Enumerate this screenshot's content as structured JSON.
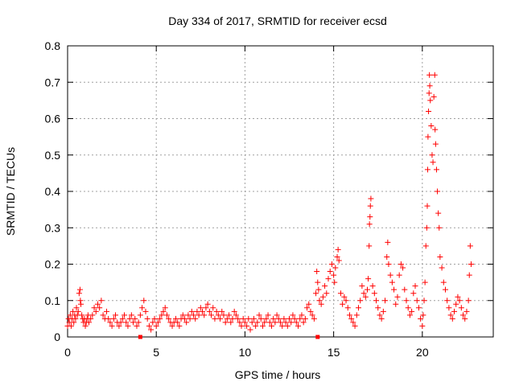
{
  "chart_data": {
    "type": "scatter",
    "title": "Day 334 of 2017, SRMTID for receiver ecsd",
    "xlabel": "GPS time / hours",
    "ylabel": "SRMTID / TECUs",
    "xlim": [
      0,
      24
    ],
    "ylim": [
      0,
      0.8
    ],
    "xticks": [
      0,
      5,
      10,
      15,
      20
    ],
    "xtick_labels": [
      "0",
      "5",
      "10",
      "15",
      "20"
    ],
    "yticks": [
      0,
      0.1,
      0.2,
      0.3,
      0.4,
      0.5,
      0.6,
      0.7,
      0.8
    ],
    "ytick_labels": [
      "0",
      "0.1",
      "0.2",
      "0.3",
      "0.4",
      "0.5",
      "0.6",
      "0.7",
      "0.8"
    ],
    "grid": true,
    "marker": "plus",
    "color": "#ff0000",
    "series": [
      {
        "name": "SRMTID",
        "points": [
          [
            0.0,
            0.03
          ],
          [
            0.05,
            0.05
          ],
          [
            0.1,
            0.04
          ],
          [
            0.15,
            0.06
          ],
          [
            0.2,
            0.03
          ],
          [
            0.25,
            0.05
          ],
          [
            0.3,
            0.07
          ],
          [
            0.35,
            0.04
          ],
          [
            0.4,
            0.06
          ],
          [
            0.45,
            0.05
          ],
          [
            0.5,
            0.08
          ],
          [
            0.55,
            0.06
          ],
          [
            0.6,
            0.07
          ],
          [
            0.65,
            0.12
          ],
          [
            0.7,
            0.13
          ],
          [
            0.72,
            0.1
          ],
          [
            0.75,
            0.09
          ],
          [
            0.8,
            0.06
          ],
          [
            0.85,
            0.05
          ],
          [
            0.9,
            0.04
          ],
          [
            0.95,
            0.05
          ],
          [
            1.0,
            0.03
          ],
          [
            1.05,
            0.04
          ],
          [
            1.1,
            0.05
          ],
          [
            1.15,
            0.06
          ],
          [
            1.2,
            0.04
          ],
          [
            1.3,
            0.05
          ],
          [
            1.4,
            0.06
          ],
          [
            1.5,
            0.08
          ],
          [
            1.6,
            0.07
          ],
          [
            1.7,
            0.09
          ],
          [
            1.8,
            0.08
          ],
          [
            1.9,
            0.1
          ],
          [
            2.0,
            0.06
          ],
          [
            2.1,
            0.05
          ],
          [
            2.2,
            0.07
          ],
          [
            2.3,
            0.05
          ],
          [
            2.4,
            0.04
          ],
          [
            2.5,
            0.03
          ],
          [
            2.6,
            0.05
          ],
          [
            2.7,
            0.06
          ],
          [
            2.8,
            0.04
          ],
          [
            2.9,
            0.03
          ],
          [
            3.0,
            0.04
          ],
          [
            3.1,
            0.05
          ],
          [
            3.2,
            0.06
          ],
          [
            3.3,
            0.04
          ],
          [
            3.4,
            0.03
          ],
          [
            3.5,
            0.05
          ],
          [
            3.6,
            0.06
          ],
          [
            3.7,
            0.04
          ],
          [
            3.8,
            0.05
          ],
          [
            3.9,
            0.03
          ],
          [
            4.0,
            0.04
          ],
          [
            4.1,
            0.06
          ],
          [
            4.2,
            0.08
          ],
          [
            4.3,
            0.1
          ],
          [
            4.4,
            0.07
          ],
          [
            4.5,
            0.05
          ],
          [
            4.6,
            0.03
          ],
          [
            4.7,
            0.02
          ],
          [
            4.8,
            0.04
          ],
          [
            4.9,
            0.05
          ],
          [
            5.0,
            0.03
          ],
          [
            5.1,
            0.04
          ],
          [
            5.2,
            0.05
          ],
          [
            5.3,
            0.06
          ],
          [
            5.4,
            0.07
          ],
          [
            5.5,
            0.08
          ],
          [
            5.6,
            0.06
          ],
          [
            5.7,
            0.05
          ],
          [
            5.8,
            0.04
          ],
          [
            5.9,
            0.03
          ],
          [
            6.0,
            0.04
          ],
          [
            6.1,
            0.05
          ],
          [
            6.2,
            0.04
          ],
          [
            6.3,
            0.03
          ],
          [
            6.4,
            0.05
          ],
          [
            6.5,
            0.06
          ],
          [
            6.6,
            0.05
          ],
          [
            6.7,
            0.04
          ],
          [
            6.8,
            0.06
          ],
          [
            6.9,
            0.05
          ],
          [
            7.0,
            0.07
          ],
          [
            7.1,
            0.06
          ],
          [
            7.2,
            0.05
          ],
          [
            7.3,
            0.07
          ],
          [
            7.4,
            0.06
          ],
          [
            7.5,
            0.08
          ],
          [
            7.6,
            0.07
          ],
          [
            7.7,
            0.06
          ],
          [
            7.8,
            0.08
          ],
          [
            7.9,
            0.09
          ],
          [
            8.0,
            0.07
          ],
          [
            8.1,
            0.06
          ],
          [
            8.2,
            0.08
          ],
          [
            8.3,
            0.05
          ],
          [
            8.4,
            0.07
          ],
          [
            8.5,
            0.06
          ],
          [
            8.6,
            0.05
          ],
          [
            8.7,
            0.07
          ],
          [
            8.8,
            0.06
          ],
          [
            8.9,
            0.04
          ],
          [
            9.0,
            0.05
          ],
          [
            9.1,
            0.06
          ],
          [
            9.2,
            0.04
          ],
          [
            9.3,
            0.05
          ],
          [
            9.4,
            0.07
          ],
          [
            9.5,
            0.06
          ],
          [
            9.6,
            0.05
          ],
          [
            9.7,
            0.04
          ],
          [
            9.8,
            0.03
          ],
          [
            9.9,
            0.05
          ],
          [
            10.0,
            0.04
          ],
          [
            10.1,
            0.03
          ],
          [
            10.2,
            0.05
          ],
          [
            10.3,
            0.02
          ],
          [
            10.4,
            0.04
          ],
          [
            10.5,
            0.05
          ],
          [
            10.6,
            0.03
          ],
          [
            10.7,
            0.04
          ],
          [
            10.8,
            0.06
          ],
          [
            10.9,
            0.05
          ],
          [
            11.0,
            0.03
          ],
          [
            11.1,
            0.04
          ],
          [
            11.2,
            0.05
          ],
          [
            11.3,
            0.06
          ],
          [
            11.4,
            0.04
          ],
          [
            11.5,
            0.03
          ],
          [
            11.6,
            0.05
          ],
          [
            11.7,
            0.04
          ],
          [
            11.8,
            0.06
          ],
          [
            11.9,
            0.05
          ],
          [
            12.0,
            0.04
          ],
          [
            12.1,
            0.03
          ],
          [
            12.2,
            0.05
          ],
          [
            12.3,
            0.04
          ],
          [
            12.4,
            0.03
          ],
          [
            12.5,
            0.05
          ],
          [
            12.6,
            0.04
          ],
          [
            12.7,
            0.06
          ],
          [
            12.8,
            0.05
          ],
          [
            12.9,
            0.04
          ],
          [
            13.0,
            0.03
          ],
          [
            13.1,
            0.05
          ],
          [
            13.2,
            0.06
          ],
          [
            13.3,
            0.04
          ],
          [
            13.4,
            0.05
          ],
          [
            13.5,
            0.08
          ],
          [
            13.6,
            0.09
          ],
          [
            13.7,
            0.07
          ],
          [
            13.8,
            0.06
          ],
          [
            13.9,
            0.05
          ],
          [
            14.0,
            0.12
          ],
          [
            14.05,
            0.18
          ],
          [
            14.1,
            0.15
          ],
          [
            14.15,
            0.13
          ],
          [
            14.2,
            0.1
          ],
          [
            14.3,
            0.09
          ],
          [
            14.4,
            0.11
          ],
          [
            14.5,
            0.14
          ],
          [
            14.6,
            0.12
          ],
          [
            14.7,
            0.16
          ],
          [
            14.8,
            0.18
          ],
          [
            14.9,
            0.2
          ],
          [
            15.0,
            0.17
          ],
          [
            15.05,
            0.15
          ],
          [
            15.1,
            0.19
          ],
          [
            15.2,
            0.22
          ],
          [
            15.25,
            0.24
          ],
          [
            15.3,
            0.21
          ],
          [
            15.4,
            0.12
          ],
          [
            15.5,
            0.09
          ],
          [
            15.6,
            0.11
          ],
          [
            15.7,
            0.1
          ],
          [
            15.8,
            0.08
          ],
          [
            15.9,
            0.06
          ],
          [
            16.0,
            0.05
          ],
          [
            16.1,
            0.04
          ],
          [
            16.2,
            0.03
          ],
          [
            16.3,
            0.06
          ],
          [
            16.4,
            0.08
          ],
          [
            16.5,
            0.1
          ],
          [
            16.6,
            0.14
          ],
          [
            16.7,
            0.12
          ],
          [
            16.8,
            0.11
          ],
          [
            16.9,
            0.13
          ],
          [
            16.95,
            0.16
          ],
          [
            17.0,
            0.25
          ],
          [
            17.02,
            0.31
          ],
          [
            17.05,
            0.33
          ],
          [
            17.07,
            0.36
          ],
          [
            17.1,
            0.38
          ],
          [
            17.2,
            0.14
          ],
          [
            17.3,
            0.12
          ],
          [
            17.4,
            0.1
          ],
          [
            17.5,
            0.08
          ],
          [
            17.6,
            0.06
          ],
          [
            17.7,
            0.05
          ],
          [
            17.8,
            0.07
          ],
          [
            17.9,
            0.1
          ],
          [
            18.0,
            0.22
          ],
          [
            18.05,
            0.26
          ],
          [
            18.1,
            0.2
          ],
          [
            18.2,
            0.17
          ],
          [
            18.3,
            0.15
          ],
          [
            18.4,
            0.13
          ],
          [
            18.5,
            0.09
          ],
          [
            18.6,
            0.11
          ],
          [
            18.7,
            0.17
          ],
          [
            18.8,
            0.2
          ],
          [
            18.9,
            0.19
          ],
          [
            19.0,
            0.13
          ],
          [
            19.1,
            0.1
          ],
          [
            19.2,
            0.08
          ],
          [
            19.3,
            0.06
          ],
          [
            19.4,
            0.07
          ],
          [
            19.5,
            0.12
          ],
          [
            19.6,
            0.14
          ],
          [
            19.7,
            0.1
          ],
          [
            19.8,
            0.08
          ],
          [
            19.9,
            0.05
          ],
          [
            20.0,
            0.03
          ],
          [
            20.05,
            0.06
          ],
          [
            20.1,
            0.1
          ],
          [
            20.15,
            0.15
          ],
          [
            20.2,
            0.25
          ],
          [
            20.25,
            0.3
          ],
          [
            20.28,
            0.36
          ],
          [
            20.3,
            0.46
          ],
          [
            20.32,
            0.55
          ],
          [
            20.35,
            0.62
          ],
          [
            20.38,
            0.67
          ],
          [
            20.4,
            0.72
          ],
          [
            20.42,
            0.69
          ],
          [
            20.45,
            0.65
          ],
          [
            20.5,
            0.58
          ],
          [
            20.55,
            0.5
          ],
          [
            20.6,
            0.48
          ],
          [
            20.65,
            0.66
          ],
          [
            20.7,
            0.72
          ],
          [
            20.72,
            0.57
          ],
          [
            20.75,
            0.53
          ],
          [
            20.8,
            0.46
          ],
          [
            20.85,
            0.4
          ],
          [
            20.9,
            0.34
          ],
          [
            20.95,
            0.3
          ],
          [
            21.0,
            0.22
          ],
          [
            21.1,
            0.19
          ],
          [
            21.2,
            0.15
          ],
          [
            21.3,
            0.13
          ],
          [
            21.4,
            0.1
          ],
          [
            21.5,
            0.08
          ],
          [
            21.6,
            0.06
          ],
          [
            21.7,
            0.05
          ],
          [
            21.8,
            0.07
          ],
          [
            21.9,
            0.09
          ],
          [
            22.0,
            0.11
          ],
          [
            22.1,
            0.1
          ],
          [
            22.2,
            0.08
          ],
          [
            22.3,
            0.06
          ],
          [
            22.4,
            0.05
          ],
          [
            22.5,
            0.07
          ],
          [
            22.6,
            0.1
          ],
          [
            22.65,
            0.17
          ],
          [
            22.7,
            0.25
          ],
          [
            22.75,
            0.2
          ]
        ]
      }
    ],
    "gaps": [
      4.1,
      14.1
    ]
  }
}
